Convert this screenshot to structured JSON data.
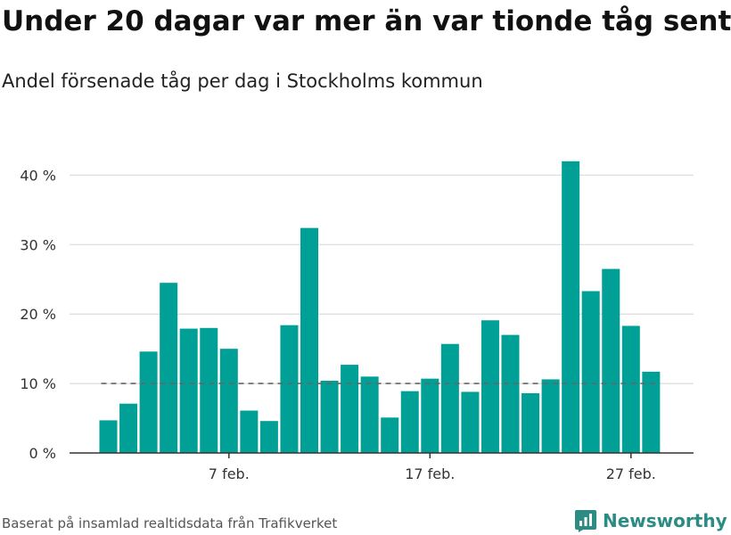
{
  "title": "Under 20 dagar var mer än var tionde tåg sent",
  "subtitle": "Andel försenade tåg per dag i Stockholms kommun",
  "source": "Baserat på insamlad realtidsdata från Trafikverket",
  "brand": "Newsworthy",
  "colors": {
    "bar": "#00a096",
    "grid": "#dcdcdc",
    "axis": "#333333",
    "reference_line": "#666666",
    "brand": "#2c8c83"
  },
  "chart_data": {
    "type": "bar",
    "x": [
      1,
      2,
      3,
      4,
      5,
      6,
      7,
      8,
      9,
      10,
      11,
      12,
      13,
      14,
      15,
      16,
      17,
      18,
      19,
      20,
      21,
      22,
      23,
      24,
      25,
      26,
      27,
      28
    ],
    "values": [
      4.7,
      7.1,
      14.6,
      24.5,
      17.9,
      18.0,
      15.0,
      6.1,
      4.6,
      18.4,
      32.4,
      10.4,
      12.7,
      11.0,
      5.1,
      8.9,
      10.7,
      15.7,
      8.8,
      19.1,
      17.0,
      8.6,
      10.6,
      42.0,
      23.3,
      26.5,
      18.3,
      11.7
    ],
    "ylim": [
      0,
      45
    ],
    "yticks": [
      0,
      10,
      20,
      30,
      40
    ],
    "ytick_labels": [
      "0 %",
      "10 %",
      "20 %",
      "30 %",
      "40 %"
    ],
    "xticks": [
      7,
      17,
      27
    ],
    "xtick_labels": [
      "7 feb.",
      "17 feb.",
      "27 feb."
    ],
    "reference_line": 10,
    "grid": true
  }
}
